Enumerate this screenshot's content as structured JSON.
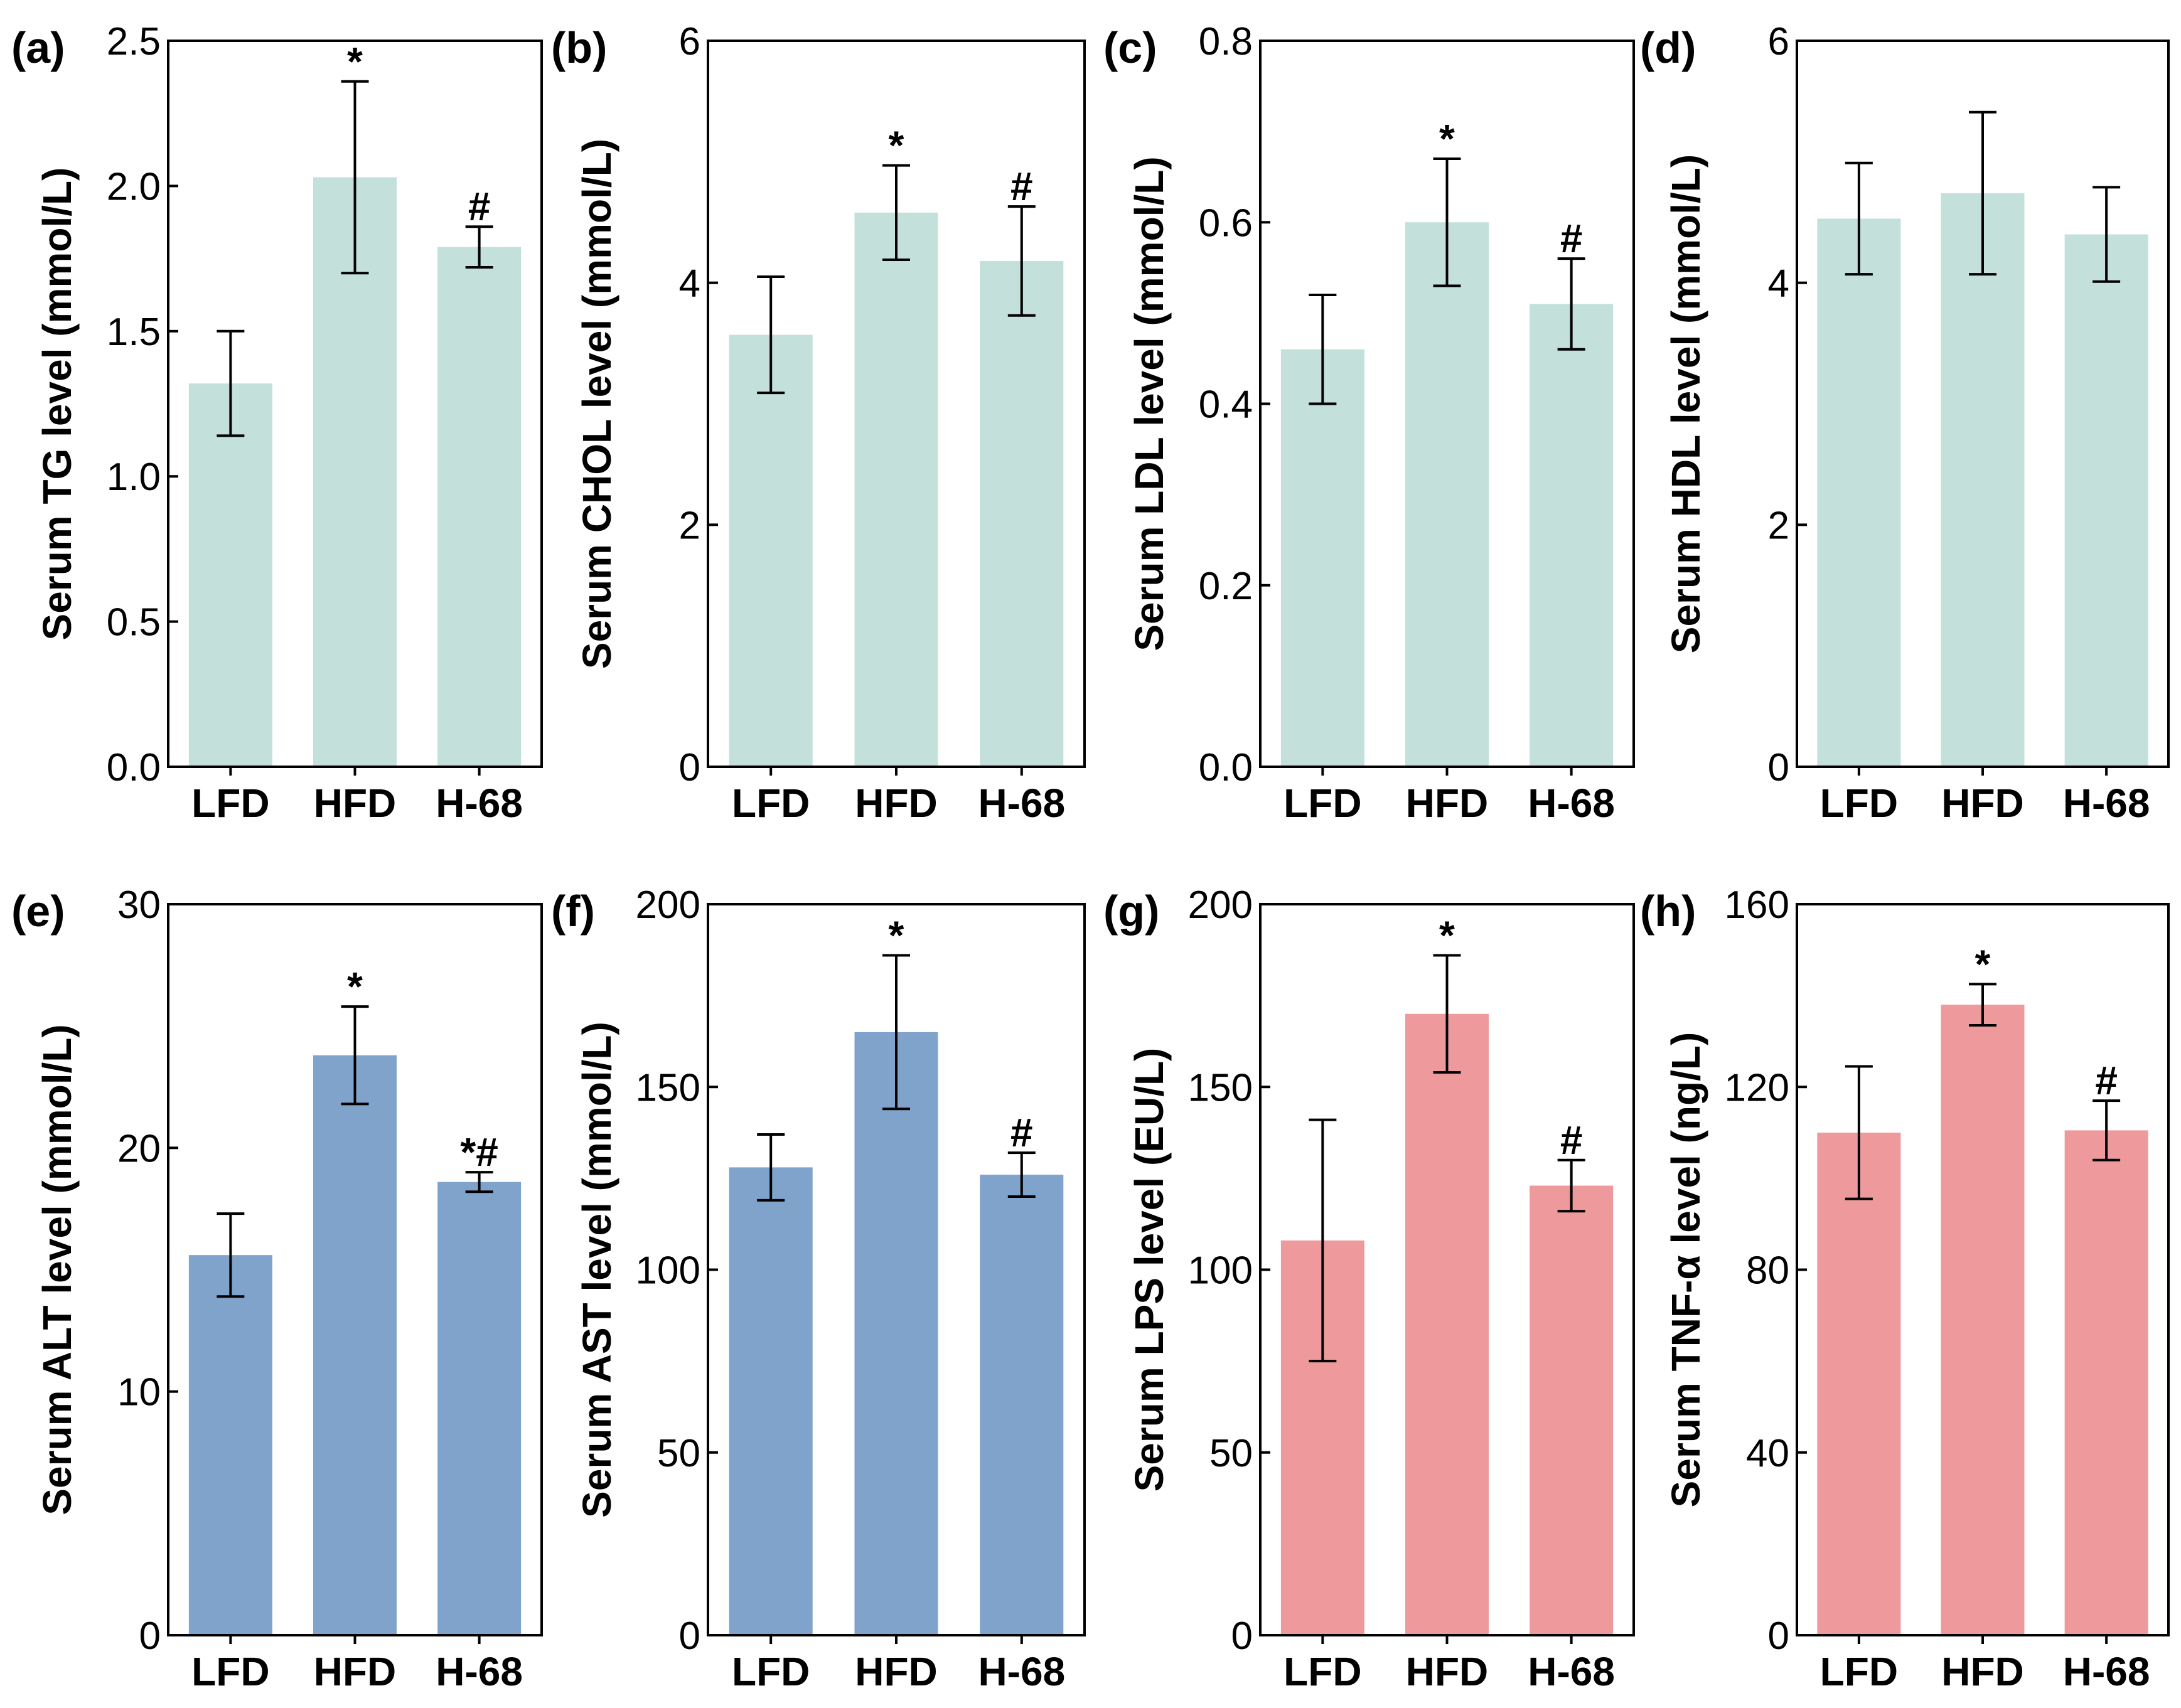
{
  "chart_data": [
    {
      "type": "bar",
      "panel": "(a)",
      "categories": [
        "LFD",
        "HFD",
        "H-68"
      ],
      "values": [
        1.32,
        2.03,
        1.79
      ],
      "errors": [
        0.18,
        0.33,
        0.07
      ],
      "annotations": [
        "",
        "*",
        "#"
      ],
      "ylabel": "Serum TG level (mmol/L)",
      "ylim": [
        0,
        2.5
      ],
      "yticks": [
        0.0,
        0.5,
        1.0,
        1.5,
        2.0,
        2.5
      ],
      "ytick_labels": [
        "0.0",
        "0.5",
        "1.0",
        "1.5",
        "2.0",
        "2.5"
      ],
      "color": "#c3e0da"
    },
    {
      "type": "bar",
      "panel": "(b)",
      "categories": [
        "LFD",
        "HFD",
        "H-68"
      ],
      "values": [
        3.57,
        4.58,
        4.18
      ],
      "errors": [
        0.48,
        0.39,
        0.45
      ],
      "annotations": [
        "",
        "*",
        "#"
      ],
      "ylabel": "Serum CHOL level (mmol/L)",
      "ylim": [
        0,
        6
      ],
      "yticks": [
        0,
        2,
        4,
        6
      ],
      "ytick_labels": [
        "0",
        "2",
        "4",
        "6"
      ],
      "color": "#c3e0da"
    },
    {
      "type": "bar",
      "panel": "(c)",
      "categories": [
        "LFD",
        "HFD",
        "H-68"
      ],
      "values": [
        0.46,
        0.6,
        0.51
      ],
      "errors": [
        0.06,
        0.07,
        0.05
      ],
      "annotations": [
        "",
        "*",
        "#"
      ],
      "ylabel": "Serum LDL level (mmol/L)",
      "ylim": [
        0,
        0.8
      ],
      "yticks": [
        0.0,
        0.2,
        0.4,
        0.6,
        0.8
      ],
      "ytick_labels": [
        "0.0",
        "0.2",
        "0.4",
        "0.6",
        "0.8"
      ],
      "color": "#c3e0da"
    },
    {
      "type": "bar",
      "panel": "(d)",
      "categories": [
        "LFD",
        "HFD",
        "H-68"
      ],
      "values": [
        4.53,
        4.74,
        4.4
      ],
      "errors": [
        0.46,
        0.67,
        0.39
      ],
      "annotations": [
        "",
        "",
        ""
      ],
      "ylabel": "Serum HDL level (mmol/L)",
      "ylim": [
        0,
        6
      ],
      "yticks": [
        0,
        2,
        4,
        6
      ],
      "ytick_labels": [
        "0",
        "2",
        "4",
        "6"
      ],
      "color": "#c3e0da"
    },
    {
      "type": "bar",
      "panel": "(e)",
      "categories": [
        "LFD",
        "HFD",
        "H-68"
      ],
      "values": [
        15.6,
        23.8,
        18.6
      ],
      "errors": [
        1.7,
        2.0,
        0.4
      ],
      "annotations": [
        "",
        "*",
        "*#"
      ],
      "ylabel": "Serum ALT level (mmol/L)",
      "ylim": [
        0,
        30
      ],
      "yticks": [
        0,
        10,
        20,
        30
      ],
      "ytick_labels": [
        "0",
        "10",
        "20",
        "30"
      ],
      "color": "#80a3cc"
    },
    {
      "type": "bar",
      "panel": "(f)",
      "categories": [
        "LFD",
        "HFD",
        "H-68"
      ],
      "values": [
        128,
        165,
        126
      ],
      "errors": [
        9,
        21,
        6
      ],
      "annotations": [
        "",
        "*",
        "#"
      ],
      "ylabel": "Serum AST level (mmol/L)",
      "ylim": [
        0,
        200
      ],
      "yticks": [
        0,
        50,
        100,
        150,
        200
      ],
      "ytick_labels": [
        "0",
        "50",
        "100",
        "150",
        "200"
      ],
      "color": "#80a3cc"
    },
    {
      "type": "bar",
      "panel": "(g)",
      "categories": [
        "LFD",
        "HFD",
        "H-68"
      ],
      "values": [
        108,
        170,
        123
      ],
      "errors": [
        33,
        16,
        7
      ],
      "annotations": [
        "",
        "*",
        "#"
      ],
      "ylabel": "Serum LPS level (EU/L)",
      "ylim": [
        0,
        200
      ],
      "yticks": [
        0,
        50,
        100,
        150,
        200
      ],
      "ytick_labels": [
        "0",
        "50",
        "100",
        "150",
        "200"
      ],
      "color": "#ee9a9d"
    },
    {
      "type": "bar",
      "panel": "(h)",
      "categories": [
        "LFD",
        "HFD",
        "H-68"
      ],
      "values": [
        110,
        138,
        110.5
      ],
      "errors": [
        14.5,
        4.5,
        6.5
      ],
      "annotations": [
        "",
        "*",
        "#"
      ],
      "ylabel": "Serum TNF-α level (ng/L)",
      "ylim": [
        0,
        160
      ],
      "yticks": [
        0,
        40,
        80,
        120,
        160
      ],
      "ytick_labels": [
        "0",
        "40",
        "80",
        "120",
        "160"
      ],
      "color": "#ee9a9d"
    }
  ]
}
